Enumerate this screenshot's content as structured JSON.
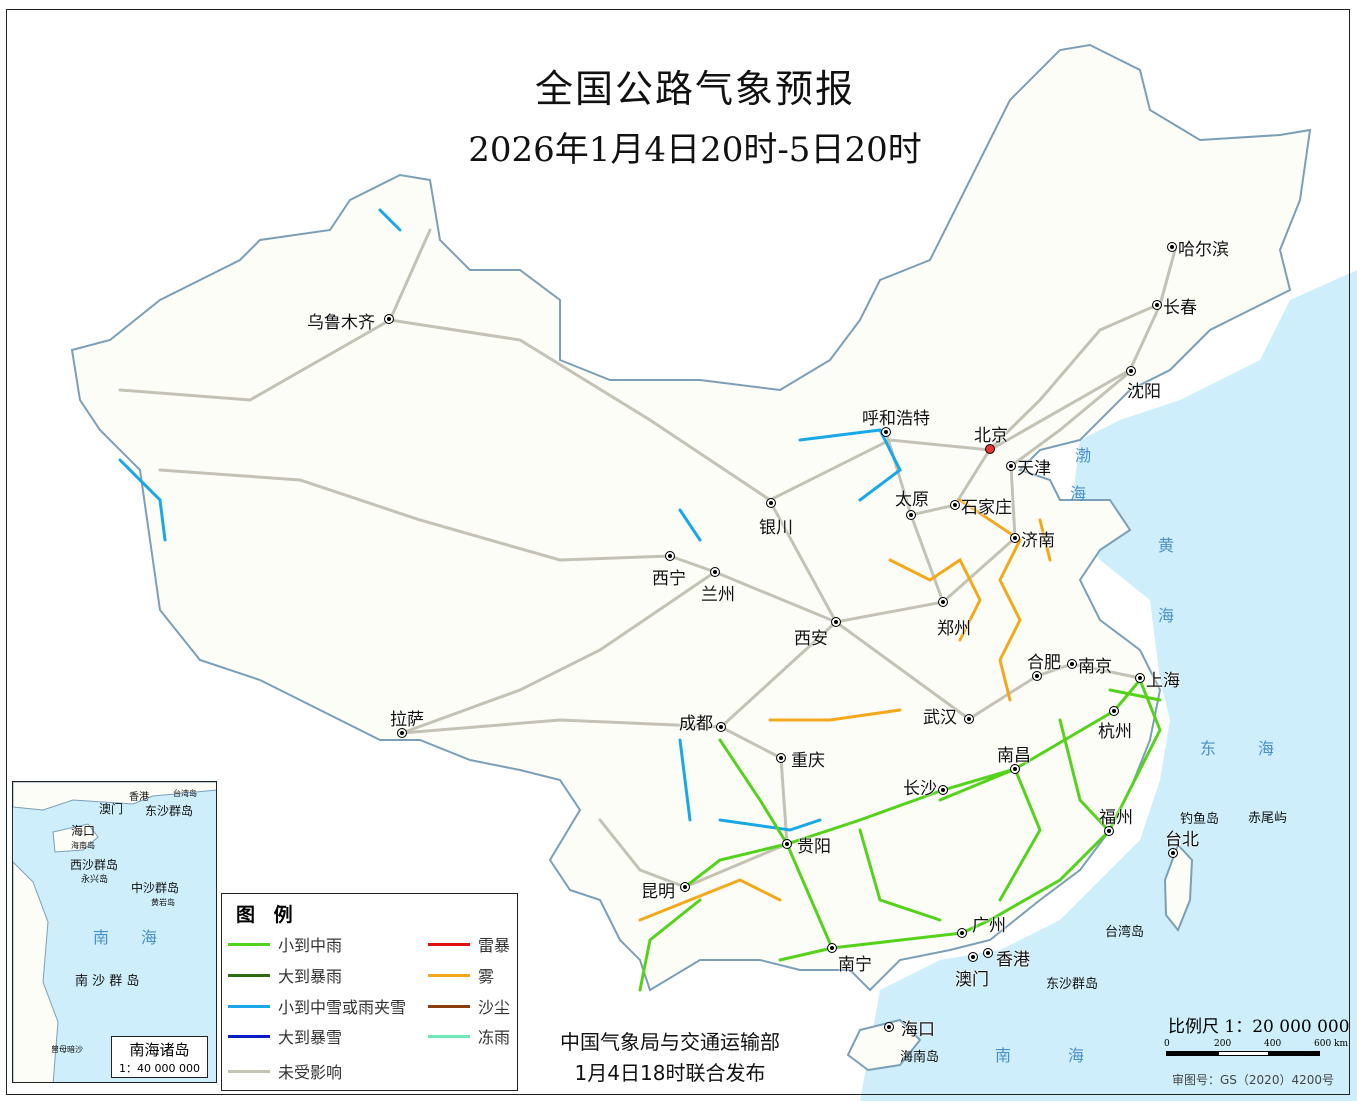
{
  "title": "全国公路气象预报",
  "subtitle": "2026年1月4日20时-5日20时",
  "cities": [
    "乌鲁木齐",
    "哈尔滨",
    "长春",
    "沈阳",
    "呼和浩特",
    "北京",
    "天津",
    "银川",
    "太原",
    "石家庄",
    "济南",
    "西宁",
    "兰州",
    "郑州",
    "西安",
    "合肥",
    "南京",
    "上海",
    "拉萨",
    "成都",
    "武汉",
    "杭州",
    "重庆",
    "南昌",
    "长沙",
    "福州",
    "台北",
    "贵阳",
    "昆明",
    "南宁",
    "广州",
    "香港",
    "澳门",
    "海口"
  ],
  "capital_city": "北京",
  "place_labels": [
    "海南岛",
    "钓鱼岛",
    "赤尾屿",
    "台湾岛",
    "东沙群岛"
  ],
  "sea_labels": [
    "黄",
    "海",
    "东",
    "海",
    "南",
    "海",
    "渤",
    "海"
  ],
  "legend": {
    "title": "图 例",
    "items": [
      {
        "label": "小到中雨",
        "color": "#55d21c"
      },
      {
        "label": "大到暴雨",
        "color": "#2e6b12"
      },
      {
        "label": "小到中雪或雨夹雪",
        "color": "#19a7e8"
      },
      {
        "label": "大到暴雪",
        "color": "#0a1ec8"
      },
      {
        "label": "未受影响",
        "color": "#c4c2b4"
      },
      {
        "label": "雷暴",
        "color": "#e01010"
      },
      {
        "label": "雾",
        "color": "#f4a81c"
      },
      {
        "label": "沙尘",
        "color": "#8b3e10"
      },
      {
        "label": "冻雨",
        "color": "#6ee8b4"
      }
    ]
  },
  "inset": {
    "title": "南海诸岛",
    "scale": "1：40 000 000",
    "labels": [
      "香港",
      "台湾岛",
      "澳门",
      "东沙群岛",
      "海口",
      "海南岛",
      "西沙群岛",
      "永兴岛",
      "中沙群岛",
      "黄岩岛",
      "南 沙 群 岛",
      "曾母暗沙"
    ],
    "sea": [
      "南",
      "海"
    ]
  },
  "footer": {
    "line1": "中国气象局与交通运输部",
    "line2": "1月4日18时联合发布"
  },
  "scale": {
    "label": "比例尺 1：20 000 000",
    "ticks": [
      "0",
      "200",
      "400",
      "600 km"
    ],
    "approval": "审图号：GS（2020）4200号"
  }
}
